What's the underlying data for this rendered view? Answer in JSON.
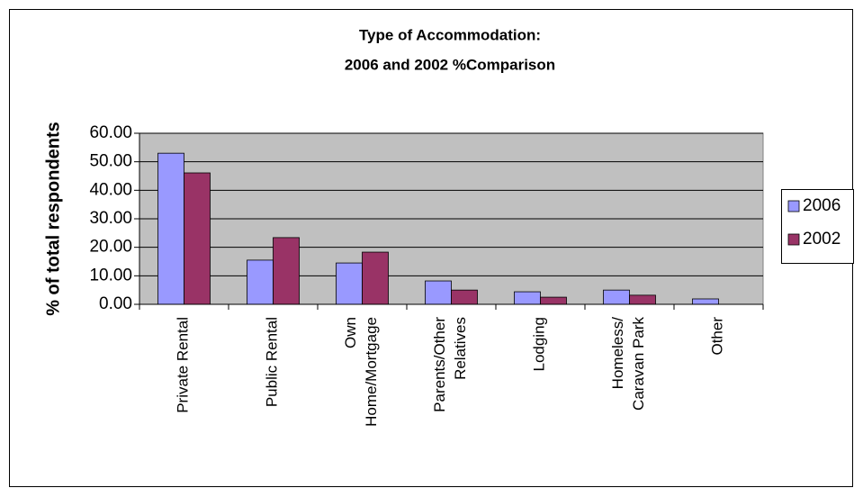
{
  "chart_data": {
    "type": "bar",
    "title": "Type of Accommodation:",
    "subtitle": "2006 and 2002 %Comparison",
    "y_label": "% of total respondents",
    "categories": [
      "Private Rental",
      "Public Rental",
      "Own\nHome/Mortgage",
      "Parents/Other\nRelatives",
      "Lodging",
      "Homeless/\nCaravan Park",
      "Other"
    ],
    "series": [
      {
        "name": "2006",
        "color": "#9999ff",
        "values": [
          53.0,
          15.5,
          14.5,
          8.2,
          4.4,
          5.0,
          1.9
        ]
      },
      {
        "name": "2002",
        "color": "#993366",
        "values": [
          46.1,
          23.4,
          18.3,
          5.0,
          2.5,
          3.2,
          0
        ]
      }
    ],
    "ylim": [
      0,
      60
    ],
    "yticks": [
      {
        "value": 0,
        "label": "0.00"
      },
      {
        "value": 10,
        "label": "10.00"
      },
      {
        "value": 20,
        "label": "20.00"
      },
      {
        "value": 30,
        "label": "30.00"
      },
      {
        "value": 40,
        "label": "40.00"
      },
      {
        "value": 50,
        "label": "50.00"
      },
      {
        "value": 60,
        "label": "60.00"
      }
    ],
    "grid": true,
    "legend": "right",
    "plot_background": "#c0c0c0"
  }
}
